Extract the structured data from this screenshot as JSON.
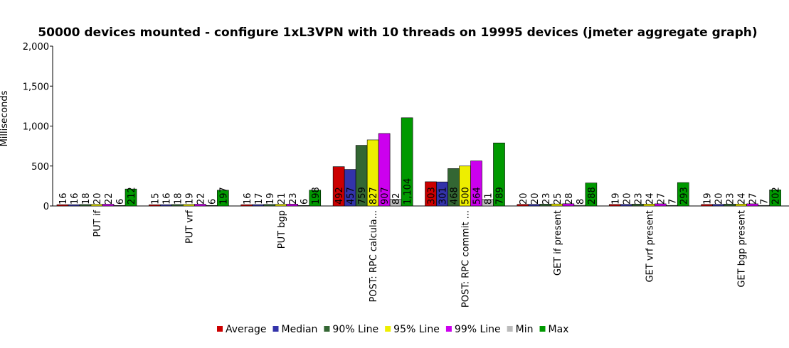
{
  "chart_data": {
    "type": "bar",
    "title": "50000 devices mounted - configure 1xL3VPN with 10 threads on 19995 devices (jmeter aggregate graph)",
    "ylabel": "Milliseconds",
    "xlabel": "",
    "ylim": [
      0,
      2000
    ],
    "yticks": [
      "0",
      "500",
      "1,000",
      "1,500",
      "2,000"
    ],
    "grid": false,
    "legend_position": "bottom",
    "categories": [
      "PUT if",
      "PUT vrf",
      "PUT bgp",
      "POST: RPC calcula...",
      "POST: RPC commit ...",
      "GET if present",
      "GET vrf present",
      "GET bgp present"
    ],
    "series": [
      {
        "name": "Average",
        "color": "#cc0000",
        "values": [
          16,
          15,
          16,
          492,
          303,
          20,
          19,
          19
        ]
      },
      {
        "name": "Median",
        "color": "#3333aa",
        "values": [
          16,
          16,
          17,
          457,
          301,
          20,
          20,
          20
        ]
      },
      {
        "name": "90% Line",
        "color": "#336633",
        "values": [
          18,
          18,
          19,
          759,
          468,
          23,
          23,
          23
        ]
      },
      {
        "name": "95% Line",
        "color": "#eeee00",
        "values": [
          20,
          19,
          21,
          827,
          500,
          25,
          24,
          24
        ]
      },
      {
        "name": "99% Line",
        "color": "#cc00ee",
        "values": [
          22,
          22,
          23,
          907,
          564,
          28,
          27,
          27
        ]
      },
      {
        "name": "Min",
        "color": "#bbbbbb",
        "values": [
          6,
          6,
          6,
          82,
          81,
          8,
          7,
          7
        ]
      },
      {
        "name": "Max",
        "color": "#009900",
        "values": [
          212,
          197,
          198,
          1104,
          789,
          288,
          293,
          202
        ]
      }
    ]
  }
}
